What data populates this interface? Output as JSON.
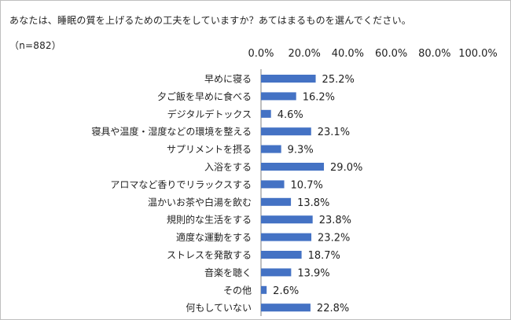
{
  "chart_data": {
    "type": "bar",
    "orientation": "horizontal",
    "title": "あなたは、睡眠の質を上げるための工夫をしていますか？あてはまるものを選んでください。（n=882）",
    "xlim": [
      0,
      100
    ],
    "x_ticks": [
      "0.0%",
      "20.0%",
      "40.0%",
      "60.0%",
      "80.0%",
      "100.0%"
    ],
    "grid": false,
    "bar_color": "#4472c4",
    "categories": [
      "早めに寝る",
      "夕ご飯を早めに食べる",
      "デジタルデトックス",
      "寝具や温度・湿度などの環境を整える",
      "サプリメントを摂る",
      "入浴をする",
      "アロマなど香りでリラックスする",
      "温かいお茶や白湯を飲む",
      "規則的な生活をする",
      "適度な運動をする",
      "ストレスを発散する",
      "音楽を聴く",
      "その他",
      "何もしていない"
    ],
    "values": [
      25.2,
      16.2,
      4.6,
      23.1,
      9.3,
      29.0,
      10.7,
      13.8,
      23.8,
      23.2,
      18.7,
      13.9,
      2.6,
      22.8
    ],
    "value_labels": [
      "25.2%",
      "16.2%",
      "4.6%",
      "23.1%",
      "9.3%",
      "29.0%",
      "10.7%",
      "13.8%",
      "23.8%",
      "23.2%",
      "18.7%",
      "13.9%",
      "2.6%",
      "22.8%"
    ]
  }
}
